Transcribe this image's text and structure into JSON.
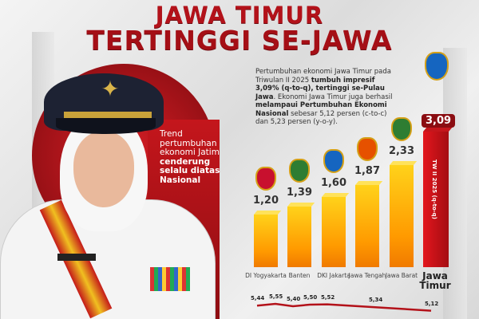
{
  "header": {
    "title_line1": "JAWA TIMUR",
    "title_line2": "TERTINGGI SE-JAWA"
  },
  "trend_note": {
    "normal": "Trend pertumbuhan ekonomi Jatim",
    "bold": "cenderung selalu diatas Nasional"
  },
  "description": {
    "p1": "Pertumbuhan ekonomi Jawa Timur pada Triwulan II 2025 ",
    "b1": "tumbuh impresif 3,09% (q-to-q), tertinggi se-Pulau Jawa",
    "p2": ". Ekonomi Jawa Timur juga berhasil ",
    "b2": "melampaui Pertumbuhan Ekonomi Nasional",
    "p3": " sebesar 5,12 persen (c-to-c) dan 5,23 persen (y-o-y)."
  },
  "colors": {
    "brand_red": "#b3121a",
    "bar_orange": "#ff9a00",
    "highlight_bar": "#c4161c"
  },
  "chart_data": [
    {
      "type": "bar",
      "categories": [
        "DI Yogyakarta",
        "Banten",
        "DKI Jakarta",
        "Jawa Tengah",
        "Jawa Barat",
        "Jawa Timur"
      ],
      "values": [
        1.2,
        1.39,
        1.6,
        1.87,
        2.33,
        3.09
      ],
      "value_labels": [
        "1,20",
        "1,39",
        "1,60",
        "1,87",
        "2,33",
        "3,09"
      ],
      "highlight": "Jawa Timur",
      "highlight_label": "TW II 2025 (q-to-q)",
      "category_icons": [
        "yogyakarta-emblem-icon",
        "banten-emblem-icon",
        "jakarta-emblem-icon",
        "jawa-tengah-emblem-icon",
        "jawa-barat-emblem-icon",
        "jawa-timur-emblem-icon"
      ]
    },
    {
      "type": "line",
      "values": [
        5.44,
        5.55,
        5.4,
        5.5,
        5.52,
        5.34,
        5.12
      ],
      "value_labels": [
        "5,44",
        "5,55",
        "5,40",
        "5,50",
        "5,52",
        "5,34",
        "5,12"
      ]
    }
  ]
}
